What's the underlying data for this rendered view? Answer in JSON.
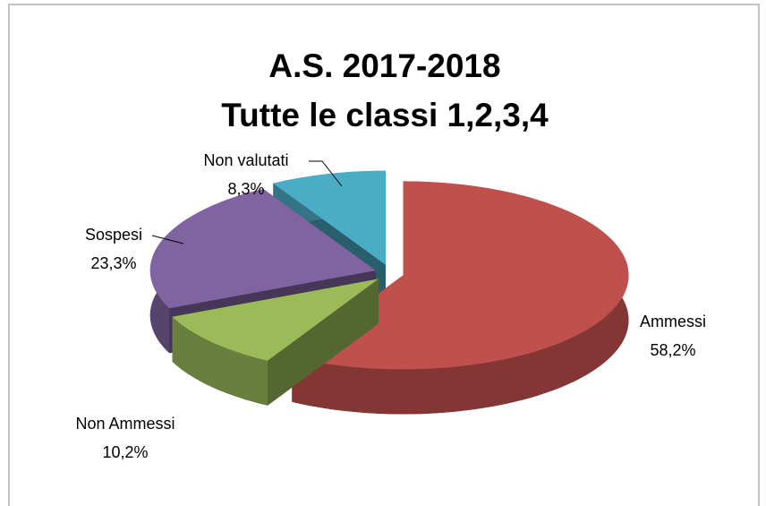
{
  "chart_data": {
    "type": "pie3d",
    "title": "A.S. 2017-2018",
    "subtitle": "Tutte le classi 1,2,3,4",
    "categories": [
      "Ammessi",
      "Non Ammessi",
      "Sospesi",
      "Non valutati"
    ],
    "values": [
      58.2,
      10.2,
      23.3,
      8.3
    ],
    "value_labels": [
      "58,2%",
      "10,2%",
      "23,3%",
      "8,3%"
    ],
    "colors": [
      "#c0504d",
      "#9bbb59",
      "#8064a2",
      "#4bacc6"
    ]
  }
}
